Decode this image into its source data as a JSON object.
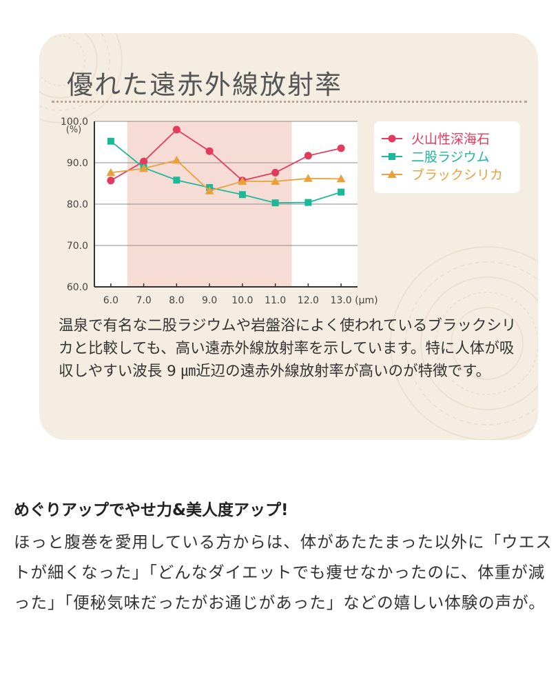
{
  "card": {
    "title": "優れた遠赤外線放射率",
    "description": "温泉で有名な二股ラジウムや岩盤浴によく使われているブラックシリカと比較しても、高い遠赤外線放射率を示しています。特に人体が吸収しやすい波長 9 ㎛近辺の遠赤外線放射率が高いのが特徴です。"
  },
  "chart_data": {
    "type": "line",
    "title": "",
    "ylabel": "(%)",
    "xunit": "(μm)",
    "x": [
      "6.0",
      "7.0",
      "8.0",
      "9.0",
      "10.0",
      "11.0",
      "12.0",
      "13.0"
    ],
    "ylim": [
      60,
      100
    ],
    "yticks": [
      "100.0",
      "90.0",
      "80.0",
      "70.0",
      "60.0"
    ],
    "highlight_range": [
      6.5,
      11.5
    ],
    "highlight_color": "#f6dcd5",
    "grid": true,
    "legend_position": "top-right",
    "series": [
      {
        "name": "火山性深海石",
        "color": "#e23b5e",
        "marker": "circle",
        "x": [
          6.0,
          7.0,
          8.0,
          9.0,
          10.0,
          11.0,
          12.0,
          13.0
        ],
        "values": [
          85.7,
          90.3,
          98.0,
          92.8,
          85.7,
          87.6,
          91.7,
          93.5
        ]
      },
      {
        "name": "二股ラジウム",
        "color": "#1db89a",
        "marker": "square",
        "x": [
          6.0,
          7.0,
          8.0,
          9.0,
          10.0,
          11.0,
          12.0,
          13.0
        ],
        "values": [
          95.2,
          88.8,
          85.8,
          84.0,
          82.3,
          80.3,
          80.4,
          82.9
        ]
      },
      {
        "name": "ブラックシリカ",
        "color": "#e9a23b",
        "marker": "triangle",
        "x": [
          6.0,
          7.0,
          8.0,
          9.0,
          10.0,
          11.0,
          12.0,
          13.0
        ],
        "values": [
          87.6,
          88.6,
          90.6,
          83.2,
          85.5,
          85.5,
          86.2,
          86.1
        ]
      }
    ]
  },
  "section": {
    "title": "めぐりアップでやせ力&美人度アップ!",
    "body": "ほっと腹巻を愛用している方からは、体があたたまった以外に「ウエストが細くなった」「どんなダイエットでも痩せなかったのに、体重が減った」「便秘気味だったがお通じがあった」などの嬉しい体験の声が。"
  }
}
